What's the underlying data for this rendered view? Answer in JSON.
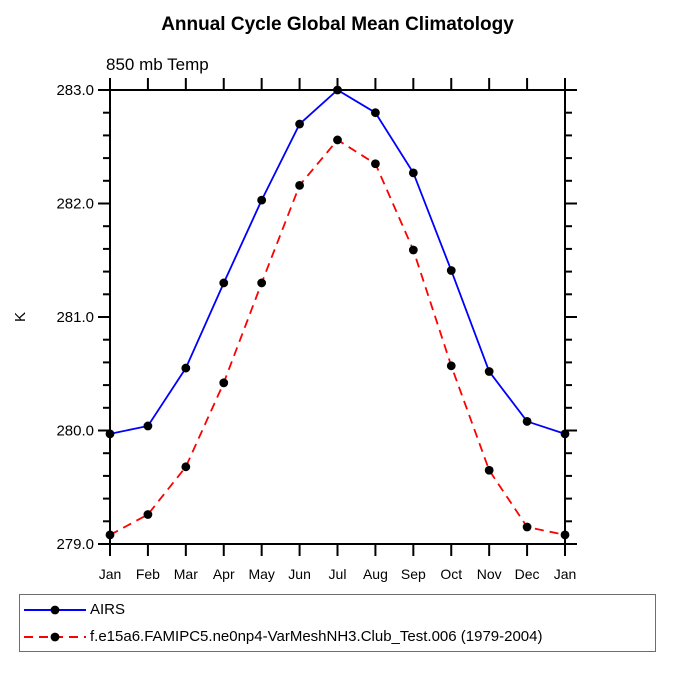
{
  "chart_data": {
    "type": "line",
    "title": "Annual Cycle Global Mean Climatology",
    "subtitle": "850 mb Temp",
    "xlabel": "",
    "ylabel": "K",
    "categories": [
      "Jan",
      "Feb",
      "Mar",
      "Apr",
      "May",
      "Jun",
      "Jul",
      "Aug",
      "Sep",
      "Oct",
      "Nov",
      "Dec",
      "Jan"
    ],
    "ylim": [
      279.0,
      283.0
    ],
    "ytick_major_interval": 1.0,
    "ytick_minor_interval": 0.2,
    "ytick_labels": [
      "279.0",
      "280.0",
      "281.0",
      "282.0",
      "283.0"
    ],
    "grid": false,
    "legend_position": "bottom-box",
    "axis_color": "#000000",
    "marker_color": "#000000",
    "series": [
      {
        "name": "AIRS",
        "color": "#0000ff",
        "line_style": "solid",
        "marker": "filled-circle",
        "values": [
          279.97,
          280.04,
          280.55,
          281.3,
          282.03,
          282.7,
          283.0,
          282.8,
          282.27,
          281.41,
          280.52,
          280.08,
          279.97
        ]
      },
      {
        "name": "f.e15a6.FAMIPC5.ne0np4-VarMeshNH3.Club_Test.006 (1979-2004)",
        "color": "#ff0000",
        "line_style": "dashed",
        "marker": "filled-circle",
        "values": [
          279.08,
          279.26,
          279.68,
          280.42,
          281.3,
          282.16,
          282.56,
          282.35,
          281.59,
          280.57,
          279.65,
          279.15,
          279.08
        ]
      }
    ]
  }
}
